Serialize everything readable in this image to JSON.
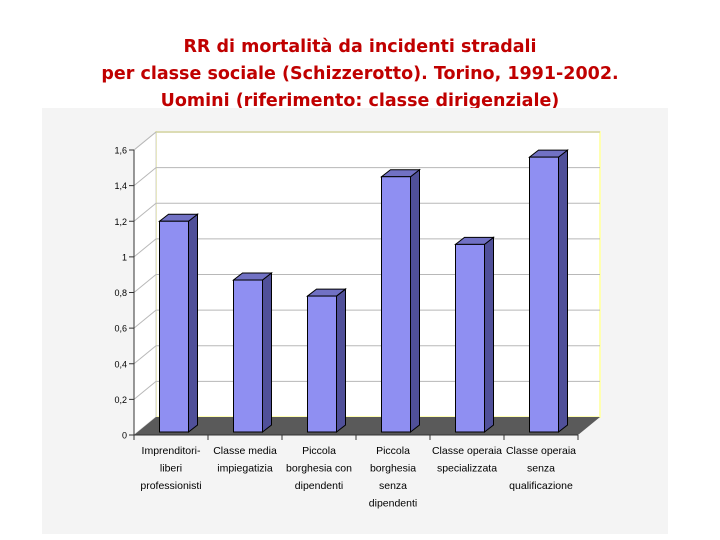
{
  "title_lines": [
    "RR di mortalità da incidenti stradali",
    "per classe sociale (Schizzerotto). Torino, 1991-2002.",
    "Uomini (riferimento: classe dirigenziale)"
  ],
  "colors": {
    "title": "#c00000",
    "bar_front": "#8f8ff2",
    "bar_side": "#505099",
    "bar_top": "#7171c4",
    "floor": "#5a5a5a",
    "plot_border": "#ffffb0"
  },
  "chart_data": {
    "type": "bar",
    "title": "",
    "xlabel": "",
    "ylabel": "",
    "ylim": [
      0,
      1.6
    ],
    "yticks": [
      "0",
      "0,2",
      "0,4",
      "0,6",
      "0,8",
      "1",
      "1,2",
      "1,4",
      "1,6"
    ],
    "grid": true,
    "legend": "none",
    "categories": [
      [
        "Imprenditori-",
        "liberi",
        "professionisti"
      ],
      [
        "Classe media",
        "impiegatizia"
      ],
      [
        "Piccola",
        "borghesia con",
        "dipendenti"
      ],
      [
        "Piccola",
        "borghesia",
        "senza",
        "dipendenti"
      ],
      [
        "Classe operaia",
        "specializzata"
      ],
      [
        "Classe operaia",
        "senza",
        "qualificazione"
      ]
    ],
    "values": [
      1.2,
      0.87,
      0.78,
      1.45,
      1.07,
      1.56
    ]
  }
}
